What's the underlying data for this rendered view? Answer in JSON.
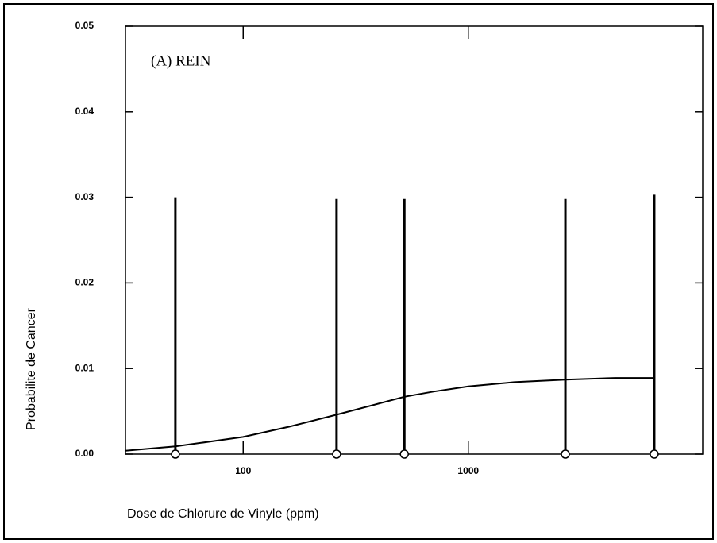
{
  "chart_data": {
    "type": "line",
    "annotation": "(A)  REIN",
    "x_label": "Dose de Chlorure de Vinyle  (ppm)",
    "y_label": "Probabilite de Cancer",
    "log_x": true,
    "xlim": [
      30,
      11000
    ],
    "xticks": [
      100,
      1000
    ],
    "ylim": [
      0,
      0.05
    ],
    "yticks": [
      {
        "value": 0,
        "label": "0.00"
      },
      {
        "value": 0.01,
        "label": "0.01"
      },
      {
        "value": 0.02,
        "label": "0.02"
      },
      {
        "value": 0.03,
        "label": "0.03"
      },
      {
        "value": 0.04,
        "label": "0.04"
      },
      {
        "value": 0.05,
        "label": "0.05"
      }
    ],
    "color": "#000000",
    "points": {
      "x": [
        50,
        260,
        520,
        2700,
        6700
      ],
      "values": [
        0,
        0,
        0,
        0,
        0
      ],
      "errors": [
        0.03,
        0.0298,
        0.0298,
        0.0298,
        0.0303
      ]
    },
    "curve": {
      "x": [
        30,
        50,
        100,
        160,
        260,
        400,
        520,
        700,
        1000,
        1600,
        2700,
        4500,
        6700
      ],
      "values": [
        0.0004,
        0.0009,
        0.002,
        0.0032,
        0.0046,
        0.0059,
        0.0067,
        0.0073,
        0.0079,
        0.0084,
        0.0087,
        0.0089,
        0.0089
      ]
    }
  }
}
